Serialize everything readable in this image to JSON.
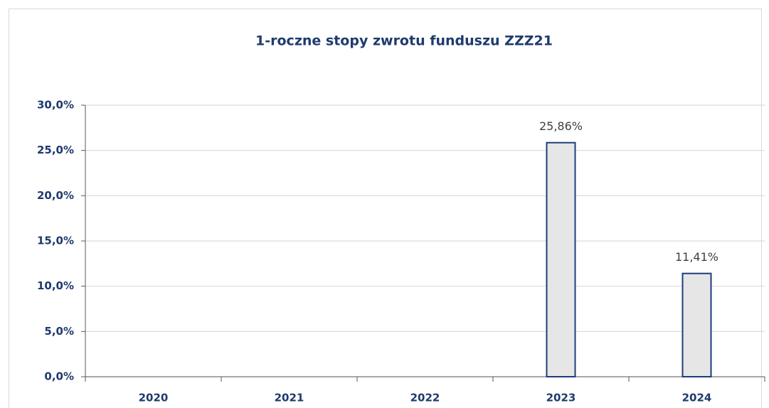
{
  "chart_data": {
    "type": "bar",
    "title": "1-roczne stopy zwrotu funduszu ZZZ21",
    "categories": [
      "2020",
      "2021",
      "2022",
      "2023",
      "2024"
    ],
    "values": [
      null,
      null,
      null,
      25.86,
      11.41
    ],
    "value_labels": [
      null,
      null,
      null,
      "25,86%",
      "11,41%"
    ],
    "color": "#e6e6e6",
    "edge_color": "#1f3d7a",
    "ylim": [
      0,
      30
    ],
    "yticks": [
      {
        "value": 0,
        "label": "0,0%"
      },
      {
        "value": 5,
        "label": "5,0%"
      },
      {
        "value": 10,
        "label": "10,0%"
      },
      {
        "value": 15,
        "label": "15,0%"
      },
      {
        "value": 20,
        "label": "20,0%"
      },
      {
        "value": 25,
        "label": "25,0%"
      },
      {
        "value": 30,
        "label": "30,0%"
      }
    ],
    "grid": true
  }
}
